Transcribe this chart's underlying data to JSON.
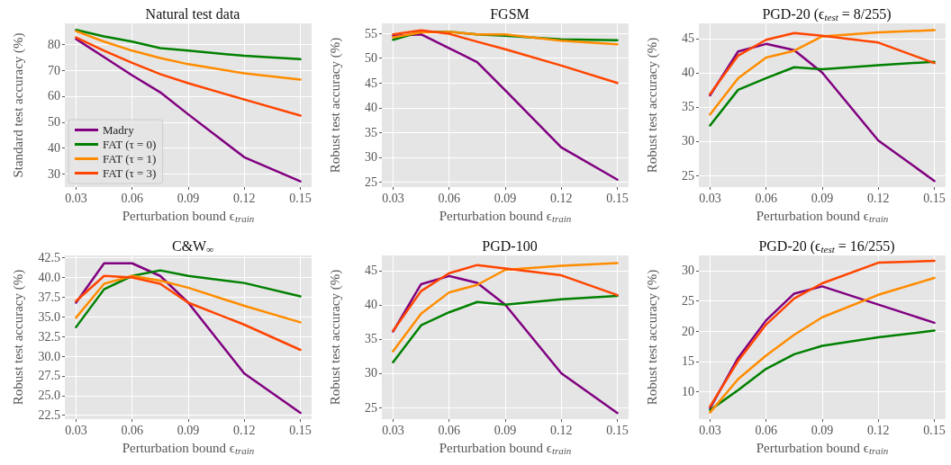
{
  "chart_data": [
    {
      "type": "line",
      "title": "Natural test data",
      "xlabel": "Perturbation bound ϵ$_{train}$",
      "ylabel": "Standard test accuracy (%)",
      "x": [
        0.03,
        0.045,
        0.06,
        0.075,
        0.09,
        0.12,
        0.15
      ],
      "xlim": [
        0.024,
        0.156
      ],
      "xticks": [
        0.03,
        0.06,
        0.09,
        0.12,
        0.15
      ],
      "ylim": [
        25,
        88
      ],
      "yticks": [
        30,
        40,
        50,
        60,
        70,
        80
      ],
      "grid": true,
      "legend": "bottom left",
      "series": [
        {
          "name": "Madry",
          "color": "#800080",
          "values": [
            82,
            75,
            68,
            61.5,
            53,
            36.5,
            27.2
          ]
        },
        {
          "name": "FAT (τ = 0)",
          "color": "#008000",
          "values": [
            85.5,
            83,
            81,
            78.5,
            77.5,
            75.5,
            74.2
          ]
        },
        {
          "name": "FAT (τ = 1)",
          "color": "#ff8c00",
          "values": [
            85,
            81,
            77.5,
            74.7,
            72.3,
            68.8,
            66.4
          ]
        },
        {
          "name": "FAT (τ = 3)",
          "color": "#ff4500",
          "values": [
            82.6,
            77.5,
            72.8,
            68.5,
            65,
            58.7,
            52.5
          ]
        }
      ]
    },
    {
      "type": "line",
      "title": "FGSM",
      "xlabel": "Perturbation bound ϵ$_{train}$",
      "ylabel": "Robust test accuracy (%)",
      "x": [
        0.03,
        0.045,
        0.06,
        0.075,
        0.09,
        0.12,
        0.15
      ],
      "xlim": [
        0.024,
        0.156
      ],
      "xticks": [
        0.03,
        0.06,
        0.09,
        0.12,
        0.15
      ],
      "ylim": [
        24,
        57
      ],
      "yticks": [
        25,
        30,
        35,
        40,
        45,
        50,
        55
      ],
      "grid": true,
      "series": [
        {
          "color": "#800080",
          "values": [
            54.5,
            54.8,
            52,
            49.2,
            43.5,
            32,
            25.5
          ]
        },
        {
          "color": "#008000",
          "values": [
            53.7,
            55.3,
            55.3,
            54.8,
            54.5,
            53.8,
            53.6
          ]
        },
        {
          "color": "#ff8c00",
          "values": [
            54.2,
            55.2,
            55.3,
            54.8,
            54.8,
            53.5,
            52.8
          ]
        },
        {
          "color": "#ff4500",
          "values": [
            54.8,
            55.6,
            54.9,
            53.3,
            51.8,
            48.5,
            45
          ]
        }
      ]
    },
    {
      "type": "line",
      "title": "PGD-20 (ϵ$_{test}$ = 8/255)",
      "xlabel": "Perturbation bound ϵ$_{train}$",
      "ylabel": "Robust test accuracy (%)",
      "x": [
        0.03,
        0.045,
        0.06,
        0.075,
        0.09,
        0.12,
        0.15
      ],
      "xlim": [
        0.024,
        0.156
      ],
      "xticks": [
        0.03,
        0.06,
        0.09,
        0.12,
        0.15
      ],
      "ylim": [
        23.3,
        47.2
      ],
      "yticks": [
        25,
        30,
        35,
        40,
        45
      ],
      "grid": true,
      "series": [
        {
          "color": "#800080",
          "values": [
            36.7,
            43.1,
            44.2,
            43.3,
            40,
            30.1,
            24.2
          ]
        },
        {
          "color": "#008000",
          "values": [
            32.3,
            37.5,
            39.2,
            40.8,
            40.5,
            41.1,
            41.6
          ]
        },
        {
          "color": "#ff8c00",
          "values": [
            33.9,
            39.2,
            42.2,
            43.2,
            45.3,
            45.9,
            46.2
          ]
        },
        {
          "color": "#ff4500",
          "values": [
            36.9,
            42.5,
            44.8,
            45.8,
            45.4,
            44.4,
            41.4
          ]
        }
      ]
    },
    {
      "type": "line",
      "title": "C&W$_{∞}$",
      "xlabel": "Perturbation bound ϵ$_{train}$",
      "ylabel": "Robust test accuracy (%)",
      "x": [
        0.03,
        0.045,
        0.06,
        0.075,
        0.09,
        0.12,
        0.15
      ],
      "xlim": [
        0.024,
        0.156
      ],
      "xticks": [
        0.03,
        0.06,
        0.09,
        0.12,
        0.15
      ],
      "ylim": [
        22,
        42.8
      ],
      "yticks": [
        22.5,
        {
          "value": 25,
          "label": "25.0"
        },
        27.5,
        {
          "value": 30,
          "label": "30.0"
        },
        32.5,
        {
          "value": 35,
          "label": "35.0"
        },
        37.5,
        {
          "value": 40,
          "label": "40.0"
        },
        42.5
      ],
      "grid": true,
      "series": [
        {
          "color": "#800080",
          "values": [
            36.8,
            41.8,
            41.8,
            40.2,
            36.8,
            27.8,
            22.8
          ]
        },
        {
          "color": "#008000",
          "values": [
            33.7,
            38.5,
            40.2,
            40.9,
            40.2,
            39.3,
            37.6
          ]
        },
        {
          "color": "#ff8c00",
          "values": [
            34.9,
            39.2,
            40.2,
            39.6,
            38.7,
            36.4,
            34.3
          ]
        },
        {
          "color": "#ff4500",
          "values": [
            37,
            40.2,
            40,
            39.2,
            36.8,
            34,
            30.8
          ]
        }
      ]
    },
    {
      "type": "line",
      "title": "PGD-100",
      "xlabel": "Perturbation bound ϵ$_{train}$",
      "ylabel": "Robust test accuracy (%)",
      "x": [
        0.03,
        0.045,
        0.06,
        0.075,
        0.09,
        0.12,
        0.15
      ],
      "xlim": [
        0.024,
        0.156
      ],
      "xticks": [
        0.03,
        0.06,
        0.09,
        0.12,
        0.15
      ],
      "ylim": [
        23.3,
        47.2
      ],
      "yticks": [
        25,
        30,
        35,
        40,
        45
      ],
      "grid": true,
      "series": [
        {
          "color": "#800080",
          "values": [
            36.1,
            43,
            44.2,
            43.2,
            40,
            30,
            24.2
          ]
        },
        {
          "color": "#008000",
          "values": [
            31.6,
            37,
            38.9,
            40.4,
            40,
            40.8,
            41.3
          ]
        },
        {
          "color": "#ff8c00",
          "values": [
            33.2,
            38.7,
            41.8,
            42.9,
            45.1,
            45.7,
            46.1
          ]
        },
        {
          "color": "#ff4500",
          "values": [
            36.2,
            42,
            44.6,
            45.8,
            45.3,
            44.3,
            41.4
          ]
        }
      ]
    },
    {
      "type": "line",
      "title": "PGD-20 (ϵ$_{test}$ = 16/255)",
      "xlabel": "Perturbation bound ϵ$_{train}$",
      "ylabel": "Robust test accuracy (%)",
      "x": [
        0.03,
        0.045,
        0.06,
        0.075,
        0.09,
        0.12,
        0.15
      ],
      "xlim": [
        0.024,
        0.156
      ],
      "xticks": [
        0.03,
        0.06,
        0.09,
        0.12,
        0.15
      ],
      "ylim": [
        5.5,
        32.5
      ],
      "yticks": [
        10,
        15,
        20,
        25,
        30
      ],
      "grid": true,
      "series": [
        {
          "color": "#800080",
          "values": [
            7.3,
            15.6,
            21.8,
            26.2,
            27.4,
            24.4,
            21.4
          ]
        },
        {
          "color": "#008000",
          "values": [
            7,
            10.3,
            13.8,
            16.2,
            17.6,
            19,
            20.1
          ]
        },
        {
          "color": "#ff8c00",
          "values": [
            6.6,
            12.1,
            16,
            19.4,
            22.3,
            26,
            28.8
          ]
        },
        {
          "color": "#ff4500",
          "values": [
            7.6,
            15.1,
            21.1,
            25.4,
            27.9,
            31.3,
            31.6
          ]
        }
      ]
    }
  ]
}
